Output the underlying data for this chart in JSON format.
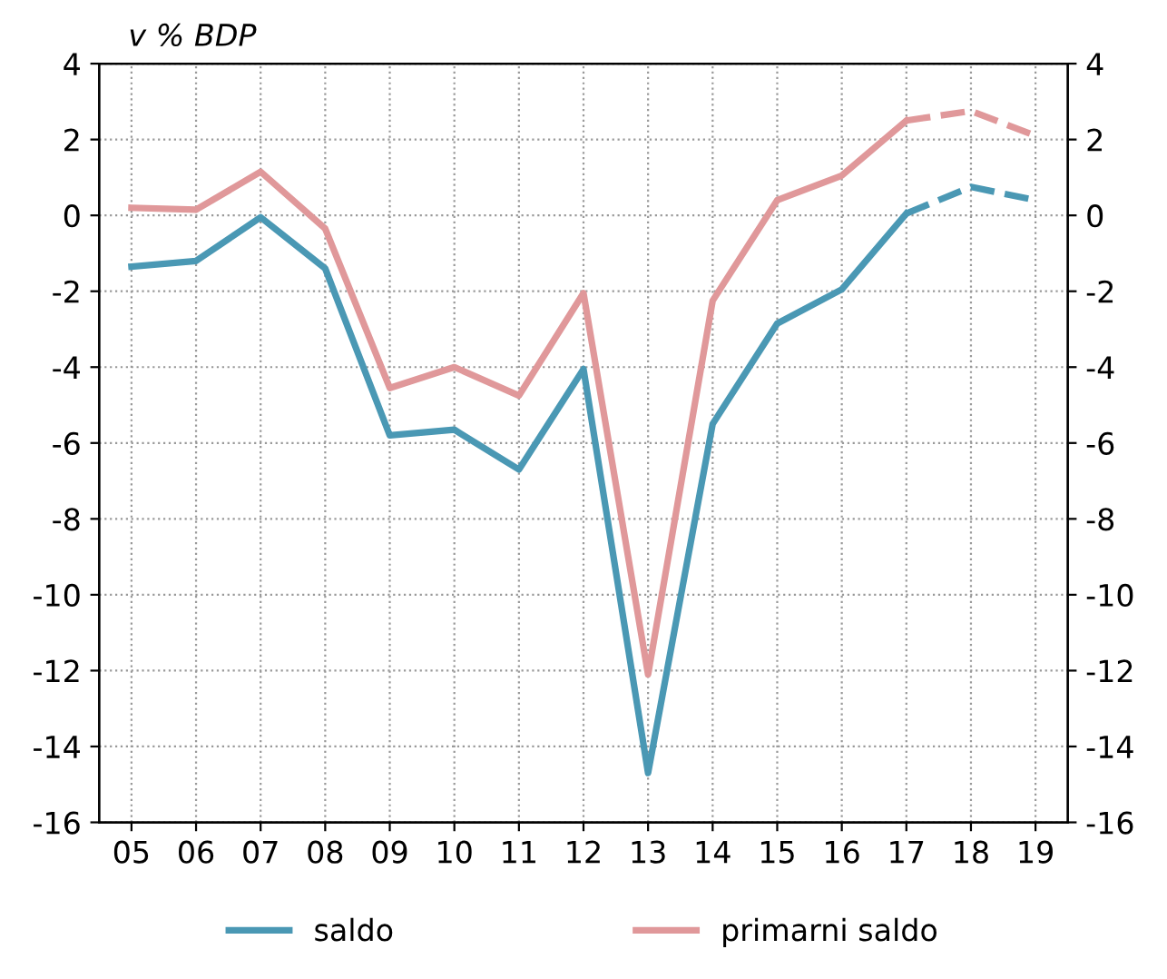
{
  "chart_data": {
    "type": "line",
    "ylabel": "v % BDP",
    "categories": [
      "05",
      "06",
      "07",
      "08",
      "09",
      "10",
      "11",
      "12",
      "13",
      "14",
      "15",
      "16",
      "17",
      "18",
      "19"
    ],
    "series": [
      {
        "name": "saldo",
        "color": "#4a98b4",
        "line_style": "solid",
        "values": [
          -1.35,
          -1.2,
          -0.05,
          -1.4,
          -5.8,
          -5.65,
          -6.7,
          -4.05,
          -14.7,
          -5.5,
          -2.85,
          -1.95,
          0.05,
          null,
          null
        ]
      },
      {
        "color": "#4a98b4",
        "line_style": "dashed",
        "values": [
          null,
          null,
          null,
          null,
          null,
          null,
          null,
          null,
          null,
          null,
          null,
          null,
          0.05,
          0.75,
          0.4
        ]
      },
      {
        "name": "primarni saldo",
        "color": "#e0989a",
        "line_style": "solid",
        "values": [
          0.2,
          0.15,
          1.15,
          -0.35,
          -4.55,
          -4.0,
          -4.75,
          -2.05,
          -12.1,
          -2.25,
          0.4,
          1.05,
          2.5,
          null,
          null
        ]
      },
      {
        "color": "#e0989a",
        "line_style": "dashed",
        "values": [
          null,
          null,
          null,
          null,
          null,
          null,
          null,
          null,
          null,
          null,
          null,
          null,
          2.5,
          2.75,
          2.1
        ]
      }
    ],
    "ylim": [
      -16,
      4
    ],
    "yticks": [
      -16,
      -14,
      -12,
      -10,
      -8,
      -6,
      -4,
      -2,
      0,
      2,
      4
    ],
    "y2lim": [
      -16,
      4
    ],
    "y2ticks": [
      -16,
      -14,
      -12,
      -10,
      -8,
      -6,
      -4,
      -2,
      0,
      2,
      4
    ],
    "grid": true,
    "legend": "bottom",
    "marker": "none"
  }
}
